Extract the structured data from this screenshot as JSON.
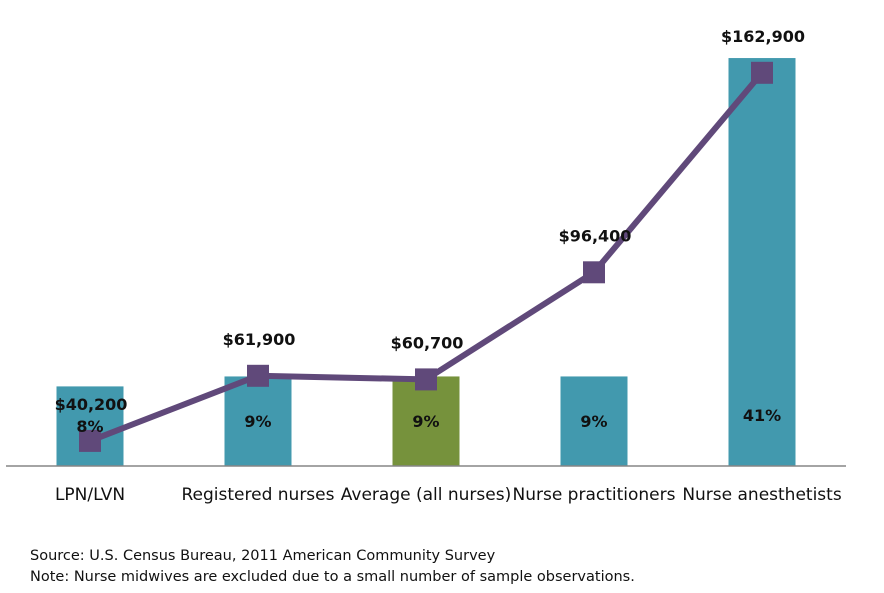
{
  "chart_data": {
    "type": "bar",
    "categories": [
      "LPN/LVN",
      "Registered nurses",
      "Average (all nurses)",
      "Nurse practitioners",
      "Nurse anesthetists"
    ],
    "series": [
      {
        "type": "bar",
        "values": [
          8,
          9,
          9,
          9,
          41
        ],
        "value_labels": [
          "8%",
          "9%",
          "9%",
          "9%",
          "41%"
        ],
        "colors": [
          "#4299ae",
          "#4299ae",
          "#76923c",
          "#4299ae",
          "#4299ae"
        ]
      },
      {
        "type": "line",
        "values": [
          40200,
          61900,
          60700,
          96400,
          162900
        ],
        "value_labels": [
          "$40,200",
          "$61,900",
          "$60,700",
          "$96,400",
          "$162,900"
        ],
        "color": "#60497a"
      }
    ],
    "grid": false,
    "legend": "none"
  },
  "notes": {
    "source": "Source: U.S. Census Bureau, 2011 American Community Survey",
    "note": "Note: Nurse midwives are excluded due to a small number of sample observations."
  }
}
